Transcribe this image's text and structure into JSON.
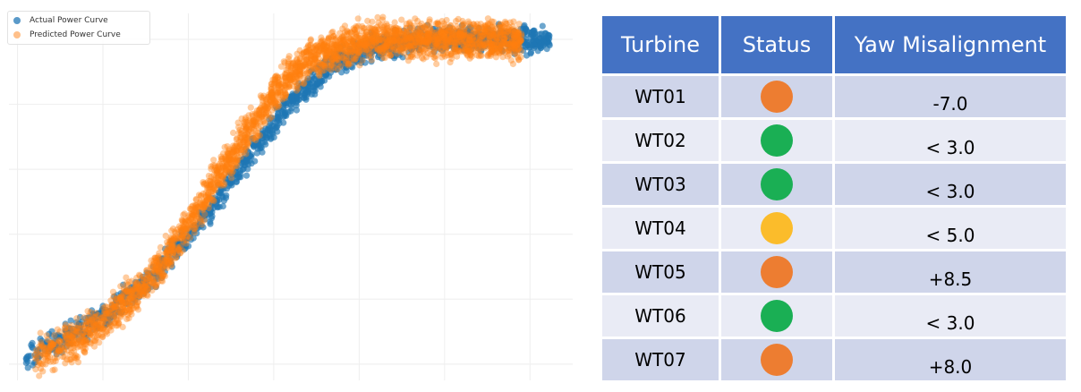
{
  "colors": {
    "actual": "#1f77b4",
    "predicted": "#ff7f0e",
    "header_bg": "#4472c4",
    "row_odd": "#cfd5ea",
    "row_even": "#e9ebf5",
    "status_orange": "#ed7d31",
    "status_green": "#1aaf54",
    "status_yellow": "#fbbc2b"
  },
  "chart_data": {
    "type": "scatter",
    "x_ticks": [
      0,
      2,
      4,
      6,
      8,
      10,
      12
    ],
    "y_ticks": [
      0,
      0.2,
      0.4,
      0.6,
      0.8,
      1.0
    ],
    "xlim": [
      -0.2,
      13.0
    ],
    "ylim": [
      -0.05,
      1.08
    ],
    "grid": true,
    "legend_position": "top-left",
    "series": [
      {
        "name": "Actual Power Curve",
        "color": "#1f77b4",
        "x": [
          0.2,
          0.5,
          1.0,
          1.5,
          2.0,
          2.5,
          3.0,
          3.5,
          4.0,
          4.5,
          5.0,
          5.5,
          6.0,
          6.5,
          7.0,
          7.5,
          8.0,
          8.5,
          9.0,
          9.5,
          10.0,
          10.5,
          11.0,
          11.5,
          12.0,
          12.5
        ],
        "y": [
          0.02,
          0.04,
          0.07,
          0.11,
          0.15,
          0.2,
          0.25,
          0.32,
          0.39,
          0.47,
          0.56,
          0.65,
          0.74,
          0.82,
          0.88,
          0.93,
          0.96,
          0.98,
          0.99,
          1.0,
          1.0,
          1.0,
          1.0,
          1.0,
          1.0,
          1.0
        ],
        "spread": 0.018
      },
      {
        "name": "Predicted Power Curve",
        "color": "#ff7f0e",
        "x": [
          0.4,
          0.8,
          1.2,
          1.6,
          2.0,
          2.4,
          2.8,
          3.2,
          3.6,
          4.0,
          4.4,
          4.8,
          5.2,
          5.6,
          6.0,
          6.4,
          6.8,
          7.2,
          7.6,
          8.0,
          8.4,
          8.8,
          9.2,
          9.6,
          10.0,
          10.6,
          11.2,
          11.8
        ],
        "y": [
          0.02,
          0.04,
          0.06,
          0.09,
          0.13,
          0.17,
          0.22,
          0.28,
          0.35,
          0.43,
          0.51,
          0.6,
          0.68,
          0.76,
          0.83,
          0.89,
          0.93,
          0.96,
          0.98,
          0.99,
          1.0,
          1.0,
          1.0,
          1.0,
          1.0,
          1.0,
          1.0,
          1.0
        ],
        "spread": 0.028
      }
    ]
  },
  "table": {
    "headers": [
      "Turbine",
      "Status",
      "Yaw Misalignment"
    ],
    "rows": [
      {
        "turbine": "WT01",
        "status": "orange",
        "yaw": "-7.0"
      },
      {
        "turbine": "WT02",
        "status": "green",
        "yaw": "< 3.0"
      },
      {
        "turbine": "WT03",
        "status": "green",
        "yaw": "< 3.0"
      },
      {
        "turbine": "WT04",
        "status": "yellow",
        "yaw": "< 5.0"
      },
      {
        "turbine": "WT05",
        "status": "orange",
        "yaw": "+8.5"
      },
      {
        "turbine": "WT06",
        "status": "green",
        "yaw": "< 3.0"
      },
      {
        "turbine": "WT07",
        "status": "orange",
        "yaw": "+8.0"
      }
    ]
  }
}
